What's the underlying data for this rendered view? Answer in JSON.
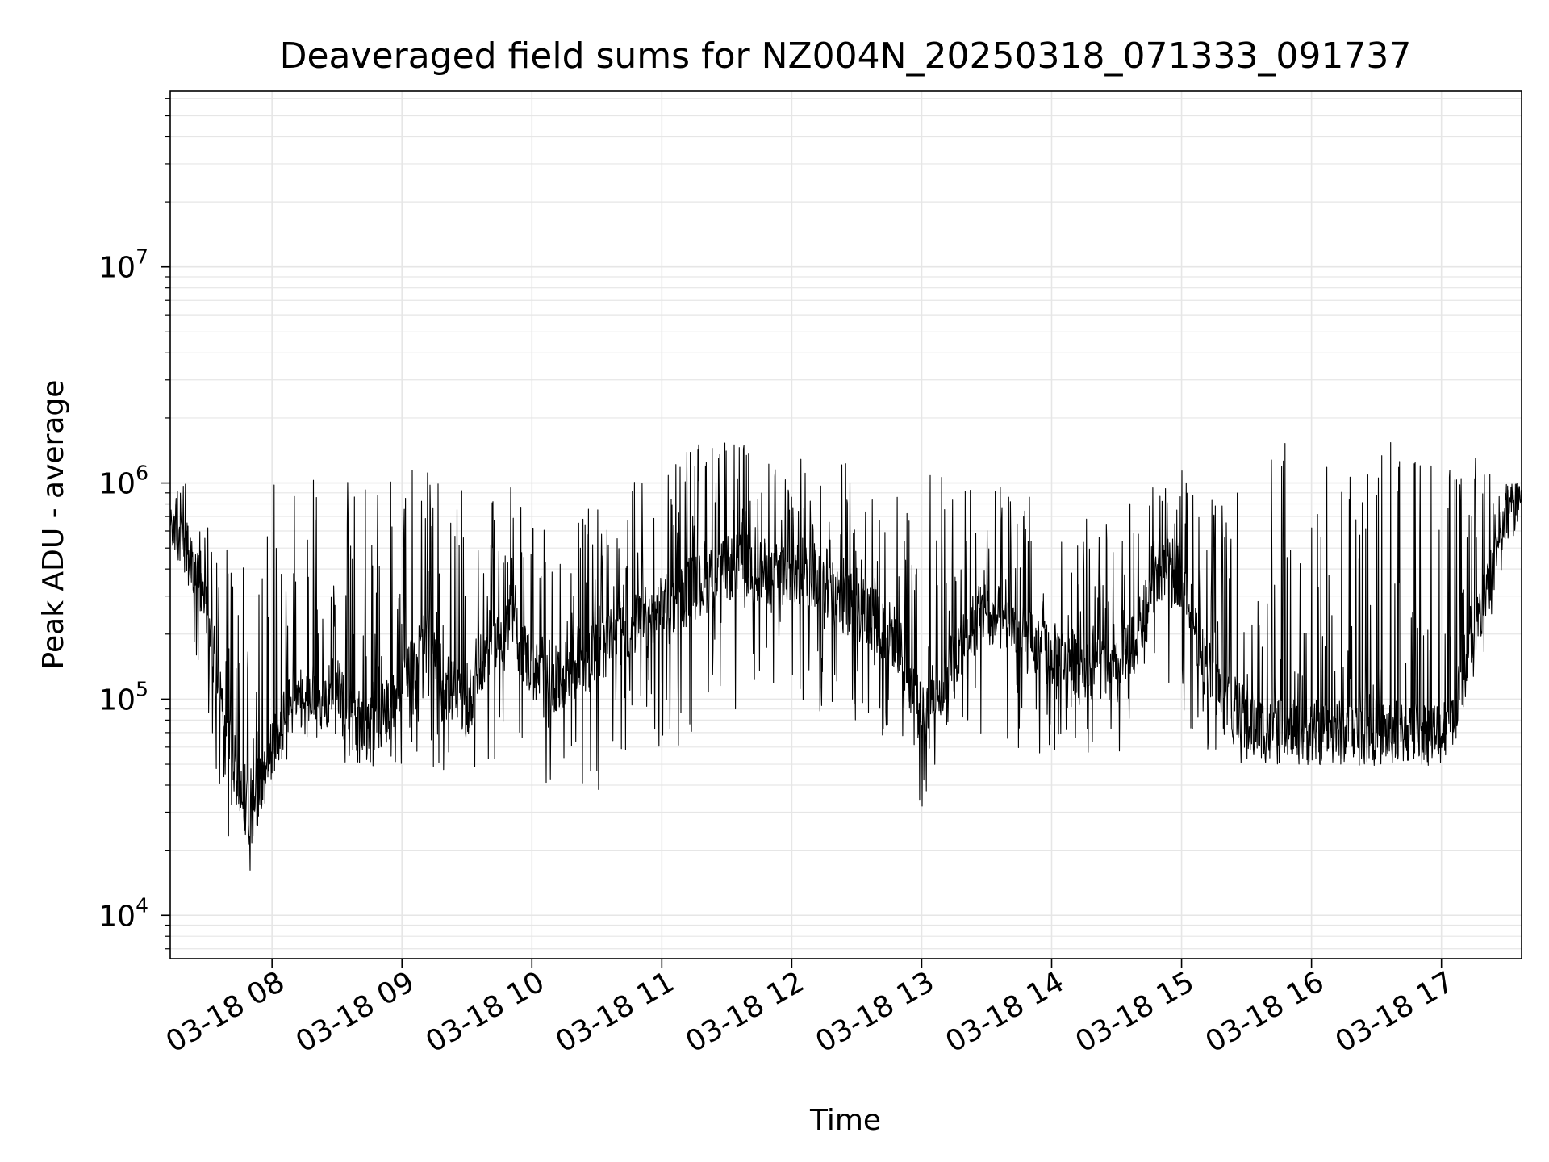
{
  "chart_data": {
    "type": "line",
    "title": "Deaveraged field sums for NZ004N_20250318_071333_091737",
    "xlabel": "Time",
    "ylabel": "Peak ADU - average",
    "yscale": "log",
    "ylim": [
      6300,
      65000000
    ],
    "xlim": [
      "03-18 07:13",
      "03-18 17:37"
    ],
    "grid": true,
    "line_color": "#000000",
    "grid_color": "#e6e6e6",
    "x_ticks": [
      {
        "label": "03-18 08",
        "time": "03-18 08:00"
      },
      {
        "label": "03-18 09",
        "time": "03-18 09:00"
      },
      {
        "label": "03-18 10",
        "time": "03-18 10:00"
      },
      {
        "label": "03-18 11",
        "time": "03-18 11:00"
      },
      {
        "label": "03-18 12",
        "time": "03-18 12:00"
      },
      {
        "label": "03-18 13",
        "time": "03-18 13:00"
      },
      {
        "label": "03-18 14",
        "time": "03-18 14:00"
      },
      {
        "label": "03-18 15",
        "time": "03-18 15:00"
      },
      {
        "label": "03-18 16",
        "time": "03-18 16:00"
      },
      {
        "label": "03-18 17",
        "time": "03-18 17:00"
      }
    ],
    "y_ticks": [
      {
        "mantissa": "10",
        "exponent": "4",
        "value": 10000
      },
      {
        "mantissa": "10",
        "exponent": "5",
        "value": 100000
      },
      {
        "mantissa": "10",
        "exponent": "6",
        "value": 1000000
      },
      {
        "mantissa": "10",
        "exponent": "7",
        "value": 10000000
      }
    ],
    "series": [
      {
        "x": [
          "03-18 07:13",
          "03-18 07:20",
          "03-18 07:30",
          "03-18 07:40",
          "03-18 07:50",
          "03-18 08:00",
          "03-18 08:10",
          "03-18 08:20",
          "03-18 08:30",
          "03-18 08:40",
          "03-18 08:50",
          "03-18 09:00",
          "03-18 09:10",
          "03-18 09:20",
          "03-18 09:30",
          "03-18 09:40",
          "03-18 09:50",
          "03-18 10:00",
          "03-18 10:10",
          "03-18 10:20",
          "03-18 10:30",
          "03-18 10:40",
          "03-18 10:50",
          "03-18 11:00",
          "03-18 11:10",
          "03-18 11:20",
          "03-18 11:30",
          "03-18 11:40",
          "03-18 11:50",
          "03-18 12:00",
          "03-18 12:10",
          "03-18 12:20",
          "03-18 12:30",
          "03-18 12:40",
          "03-18 12:50",
          "03-18 13:00",
          "03-18 13:10",
          "03-18 13:20",
          "03-18 13:30",
          "03-18 13:40",
          "03-18 13:50",
          "03-18 14:00",
          "03-18 14:10",
          "03-18 14:20",
          "03-18 14:30",
          "03-18 14:40",
          "03-18 14:50",
          "03-18 15:00",
          "03-18 15:10",
          "03-18 15:20",
          "03-18 15:30",
          "03-18 15:40",
          "03-18 15:50",
          "03-18 16:00",
          "03-18 16:10",
          "03-18 16:20",
          "03-18 16:30",
          "03-18 16:40",
          "03-18 16:50",
          "03-18 17:00",
          "03-18 17:10",
          "03-18 17:20",
          "03-18 17:30",
          "03-18 17:37"
        ],
        "base": [
          700000,
          500000,
          250000,
          60000,
          28000,
          60000,
          100000,
          90000,
          120000,
          70000,
          80000,
          110000,
          180000,
          120000,
          90000,
          180000,
          220000,
          140000,
          110000,
          150000,
          160000,
          200000,
          230000,
          260000,
          300000,
          350000,
          400000,
          420000,
          380000,
          360000,
          380000,
          300000,
          260000,
          230000,
          180000,
          80000,
          120000,
          200000,
          260000,
          220000,
          180000,
          160000,
          150000,
          140000,
          130000,
          200000,
          400000,
          380000,
          150000,
          100000,
          80000,
          70000,
          70000,
          70000,
          70000,
          70000,
          70000,
          70000,
          70000,
          70000,
          120000,
          300000,
          700000,
          900000
        ],
        "high": [
          1100000,
          1000000,
          700000,
          500000,
          400000,
          1100000,
          1200000,
          1300000,
          1100000,
          1000000,
          1200000,
          1200000,
          1150000,
          1000000,
          900000,
          800000,
          1000000,
          700000,
          700000,
          700000,
          800000,
          900000,
          1100000,
          1300000,
          1500000,
          1600000,
          1600000,
          1500000,
          1400000,
          1300000,
          1400000,
          1400000,
          1300000,
          1100000,
          1000000,
          1300000,
          1100000,
          1100000,
          1000000,
          1000000,
          900000,
          1000000,
          900000,
          700000,
          600000,
          1000000,
          1100000,
          1200000,
          800000,
          1000000,
          1300000,
          1600000,
          1600000,
          1700000,
          1700000,
          1600000,
          1600000,
          1600000,
          1600000,
          1600000,
          1500000,
          1400000,
          1000000,
          1000000
        ],
        "low": [
          500000,
          250000,
          80000,
          23000,
          16000,
          40000,
          55000,
          55000,
          55000,
          45000,
          50000,
          50000,
          50000,
          45000,
          45000,
          50000,
          60000,
          40000,
          35000,
          40000,
          35000,
          40000,
          50000,
          60000,
          60000,
          70000,
          80000,
          90000,
          100000,
          90000,
          90000,
          70000,
          60000,
          60000,
          40000,
          30000,
          50000,
          60000,
          70000,
          55000,
          50000,
          55000,
          60000,
          55000,
          50000,
          70000,
          100000,
          90000,
          55000,
          50000,
          50000,
          55000,
          55000,
          55000,
          55000,
          55000,
          55000,
          55000,
          55000,
          55000,
          60000,
          150000,
          500000,
          800000
        ]
      }
    ]
  }
}
